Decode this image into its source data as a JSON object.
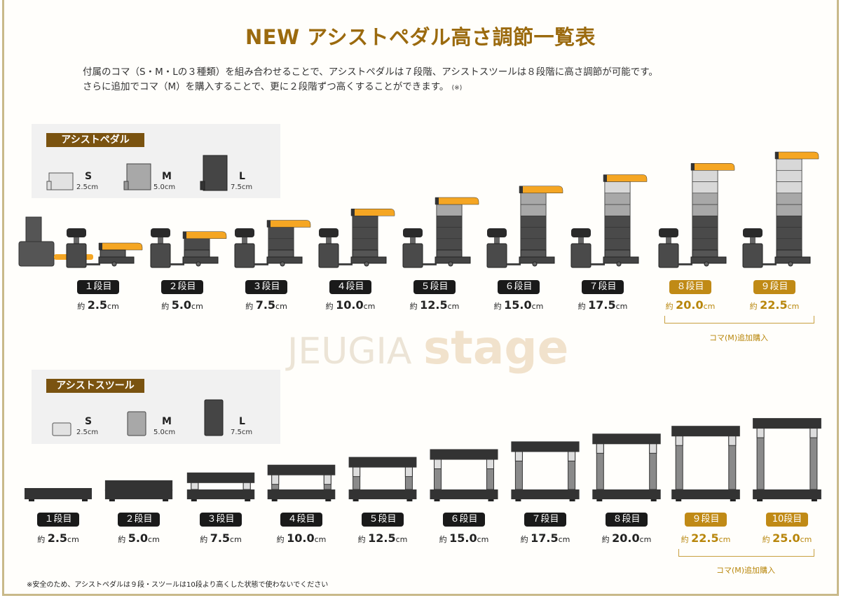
{
  "title": "NEW アシストペダル高さ調節一覧表",
  "description": {
    "line1": "付属のコマ（S・M・Lの３種類）を組み合わせることで、アシストペダルは７段階、アシストスツールは８段階に高さ調節が可能です。",
    "line2": "さらに追加でコマ（M）を購入することで、更に２段階ずつ高くすることができます。",
    "line2_note": "(※)"
  },
  "colors": {
    "accent": "#9b6a0e",
    "tag": "#7a5310",
    "pedal": "#f5a623",
    "badge": "#1a1a1a",
    "badge_added": "#c08a16"
  },
  "pedal": {
    "tag": "アシストペダル",
    "pieces": [
      {
        "size": "S",
        "height": "2.5cm"
      },
      {
        "size": "M",
        "height": "5.0cm"
      },
      {
        "size": "L",
        "height": "7.5cm"
      }
    ],
    "levels": [
      {
        "label": "１段目",
        "prefix": "約",
        "value": "2.5",
        "unit": "cm",
        "added": false
      },
      {
        "label": "２段目",
        "prefix": "約",
        "value": "5.0",
        "unit": "cm",
        "added": false
      },
      {
        "label": "３段目",
        "prefix": "約",
        "value": "7.5",
        "unit": "cm",
        "added": false
      },
      {
        "label": "４段目",
        "prefix": "約",
        "value": "10.0",
        "unit": "cm",
        "added": false
      },
      {
        "label": "５段目",
        "prefix": "約",
        "value": "12.5",
        "unit": "cm",
        "added": false
      },
      {
        "label": "６段目",
        "prefix": "約",
        "value": "15.0",
        "unit": "cm",
        "added": false
      },
      {
        "label": "７段目",
        "prefix": "約",
        "value": "17.5",
        "unit": "cm",
        "added": false
      },
      {
        "label": "８段目",
        "prefix": "約",
        "value": "20.0",
        "unit": "cm",
        "added": true
      },
      {
        "label": "９段目",
        "prefix": "約",
        "value": "22.5",
        "unit": "cm",
        "added": true
      }
    ],
    "extra_label": "コマ(M)追加購入"
  },
  "stool": {
    "tag": "アシストスツール",
    "pieces": [
      {
        "size": "S",
        "height": "2.5cm"
      },
      {
        "size": "M",
        "height": "5.0cm"
      },
      {
        "size": "L",
        "height": "7.5cm"
      }
    ],
    "levels": [
      {
        "label": "１段目",
        "prefix": "約",
        "value": "2.5",
        "unit": "cm",
        "added": false
      },
      {
        "label": "２段目",
        "prefix": "約",
        "value": "5.0",
        "unit": "cm",
        "added": false
      },
      {
        "label": "３段目",
        "prefix": "約",
        "value": "7.5",
        "unit": "cm",
        "added": false
      },
      {
        "label": "４段目",
        "prefix": "約",
        "value": "10.0",
        "unit": "cm",
        "added": false
      },
      {
        "label": "５段目",
        "prefix": "約",
        "value": "12.5",
        "unit": "cm",
        "added": false
      },
      {
        "label": "６段目",
        "prefix": "約",
        "value": "15.0",
        "unit": "cm",
        "added": false
      },
      {
        "label": "７段目",
        "prefix": "約",
        "value": "17.5",
        "unit": "cm",
        "added": false
      },
      {
        "label": "８段目",
        "prefix": "約",
        "value": "20.0",
        "unit": "cm",
        "added": false
      },
      {
        "label": "９段目",
        "prefix": "約",
        "value": "22.5",
        "unit": "cm",
        "added": true
      },
      {
        "label": "10段目",
        "prefix": "約",
        "value": "25.0",
        "unit": "cm",
        "added": true
      }
    ],
    "extra_label": "コマ(M)追加購入"
  },
  "watermark": {
    "left": "JEUGIA",
    "right": "stage"
  },
  "footnote": "※安全のため、アシストペダルは９段・スツールは10段より高くした状態で使わないでください"
}
